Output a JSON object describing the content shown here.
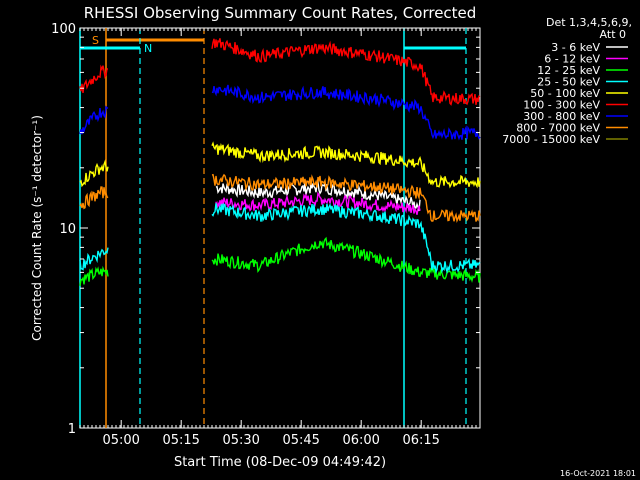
{
  "chart_data": {
    "type": "line",
    "title": "RHESSI Observing Summary Count Rates, Corrected",
    "xlabel": "Start Time (08-Dec-09 04:49:42)",
    "ylabel": "Corrected Count Rate (s⁻¹ detector⁻¹)",
    "y_scale": "log",
    "ylim": [
      1,
      100
    ],
    "xlim_minutes": [
      0,
      100
    ],
    "x_ticks": [
      {
        "label": "05:00",
        "minutes": 10.3
      },
      {
        "label": "05:15",
        "minutes": 25.3
      },
      {
        "label": "05:30",
        "minutes": 40.3
      },
      {
        "label": "05:45",
        "minutes": 55.3
      },
      {
        "label": "06:00",
        "minutes": 70.3
      },
      {
        "label": "06:15",
        "minutes": 85.3
      }
    ],
    "y_ticks": [
      {
        "label": "1",
        "value": 1
      },
      {
        "label": "10",
        "value": 10
      },
      {
        "label": "100",
        "value": 100
      }
    ],
    "legend_title": "Det 1,3,4,5,6,9,",
    "legend_subtitle": "Att 0",
    "legend_placement": "right",
    "series": [
      {
        "name": "3 - 6 keV",
        "color": "#ffffff",
        "values": [
          {
            "x": 34,
            "y": 16
          },
          {
            "x": 45,
            "y": 15
          },
          {
            "x": 60,
            "y": 16
          },
          {
            "x": 75,
            "y": 14.5
          },
          {
            "x": 85,
            "y": 13
          }
        ]
      },
      {
        "name": "6 - 12 keV",
        "color": "#ff00ff",
        "values": [
          {
            "x": 34,
            "y": 13.5
          },
          {
            "x": 45,
            "y": 13
          },
          {
            "x": 60,
            "y": 14
          },
          {
            "x": 75,
            "y": 13
          },
          {
            "x": 85,
            "y": 12.5
          }
        ]
      },
      {
        "name": "12 - 25 keV",
        "color": "#00ff00",
        "values": [
          {
            "x": 0,
            "y": 5.5
          },
          {
            "x": 5,
            "y": 6
          },
          {
            "x": 34,
            "y": 7
          },
          {
            "x": 45,
            "y": 6.5
          },
          {
            "x": 60,
            "y": 8.5
          },
          {
            "x": 75,
            "y": 7
          },
          {
            "x": 85,
            "y": 6
          },
          {
            "x": 100,
            "y": 5.7
          }
        ]
      },
      {
        "name": "25 - 50 keV",
        "color": "#00ffff",
        "values": [
          {
            "x": 0,
            "y": 6.5
          },
          {
            "x": 5,
            "y": 7.5
          },
          {
            "x": 34,
            "y": 12.5
          },
          {
            "x": 45,
            "y": 11.5
          },
          {
            "x": 60,
            "y": 12.5
          },
          {
            "x": 75,
            "y": 11.5
          },
          {
            "x": 85,
            "y": 10.5
          },
          {
            "x": 88,
            "y": 6.5
          },
          {
            "x": 100,
            "y": 6.5
          }
        ]
      },
      {
        "name": "50 - 100 keV",
        "color": "#ffff00",
        "values": [
          {
            "x": 0,
            "y": 17
          },
          {
            "x": 5,
            "y": 20
          },
          {
            "x": 34,
            "y": 25
          },
          {
            "x": 45,
            "y": 23
          },
          {
            "x": 60,
            "y": 24
          },
          {
            "x": 75,
            "y": 22.5
          },
          {
            "x": 85,
            "y": 21
          },
          {
            "x": 88,
            "y": 17
          },
          {
            "x": 100,
            "y": 17
          }
        ]
      },
      {
        "name": "100 - 300 keV",
        "color": "#ff0000",
        "values": [
          {
            "x": 0,
            "y": 48
          },
          {
            "x": 5,
            "y": 60
          },
          {
            "x": 34,
            "y": 85
          },
          {
            "x": 45,
            "y": 72
          },
          {
            "x": 60,
            "y": 80
          },
          {
            "x": 75,
            "y": 72
          },
          {
            "x": 85,
            "y": 65
          },
          {
            "x": 88,
            "y": 45
          },
          {
            "x": 100,
            "y": 44
          }
        ]
      },
      {
        "name": "300 - 800 keV",
        "color": "#0000ff",
        "values": [
          {
            "x": 0,
            "y": 30
          },
          {
            "x": 5,
            "y": 38
          },
          {
            "x": 34,
            "y": 50
          },
          {
            "x": 45,
            "y": 45
          },
          {
            "x": 60,
            "y": 48
          },
          {
            "x": 75,
            "y": 44
          },
          {
            "x": 85,
            "y": 40
          },
          {
            "x": 88,
            "y": 29
          },
          {
            "x": 100,
            "y": 30
          }
        ]
      },
      {
        "name": "800 - 7000 keV",
        "color": "#ff8c00",
        "values": [
          {
            "x": 0,
            "y": 13
          },
          {
            "x": 5,
            "y": 15
          },
          {
            "x": 34,
            "y": 17.5
          },
          {
            "x": 45,
            "y": 16.5
          },
          {
            "x": 60,
            "y": 17
          },
          {
            "x": 75,
            "y": 16
          },
          {
            "x": 85,
            "y": 15
          },
          {
            "x": 88,
            "y": 11.5
          },
          {
            "x": 100,
            "y": 11.5
          }
        ]
      },
      {
        "name": "7000 - 15000 keV",
        "color": "#808000",
        "values": []
      }
    ],
    "annotations": [
      {
        "label": "S",
        "color": "#ff8c00"
      },
      {
        "label": "N",
        "color": "#00ffff"
      }
    ]
  },
  "footer": {
    "timestamp": "16-Oct-2021 18:01"
  }
}
